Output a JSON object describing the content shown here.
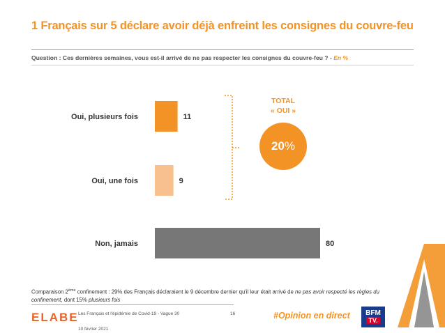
{
  "header": {
    "title": "1 Français sur 5 déclare avoir déjà enfreint les consignes du couvre-feu",
    "question": "Question : Ces dernières semaines, vous est-il arrivé de ne pas respecter les consignes du couvre-feu ? - ",
    "question_unit": "En %"
  },
  "chart_data": {
    "type": "bar",
    "orientation": "horizontal",
    "categories": [
      "Oui, plusieurs fois",
      "Oui, une fois",
      "Non, jamais"
    ],
    "values": [
      11,
      9,
      80
    ],
    "value_labels": [
      "11",
      "9",
      "80"
    ],
    "colors": [
      "#F39325",
      "#F9C08F",
      "#777777"
    ],
    "title": "",
    "xlabel": "",
    "ylabel": "",
    "xlim": [
      0,
      80
    ],
    "grid": false
  },
  "total": {
    "label_line1": "TOTAL",
    "label_line2": "« OUI »",
    "value": "20",
    "unit": "%"
  },
  "footnote": {
    "prefix": "Comparaison 2",
    "sup": "ème",
    "middle": " confinement : 29% des Français déclaraient le 9 décembre dernier qu'il leur était arrivé de ",
    "italic1": "ne pas avoir respecté les règles du confinement",
    "middle2": ", dont 15% ",
    "italic2": "plusieurs fois"
  },
  "footer": {
    "logo": [
      "E",
      "L",
      "A",
      "B",
      "E"
    ],
    "study": "Les Français et l'épidémie de Covid-19 - Vague 30",
    "date": "10 février 2021",
    "page": "16",
    "hashtag": "#Opinion en direct",
    "bfm_top": "BFM",
    "bfm_bottom": "TV."
  },
  "colors": {
    "accent": "#F39325",
    "light_accent": "#F9C08F",
    "neutral": "#777777",
    "bfm_blue": "#1a3a8c",
    "bfm_red": "#d6002a"
  }
}
